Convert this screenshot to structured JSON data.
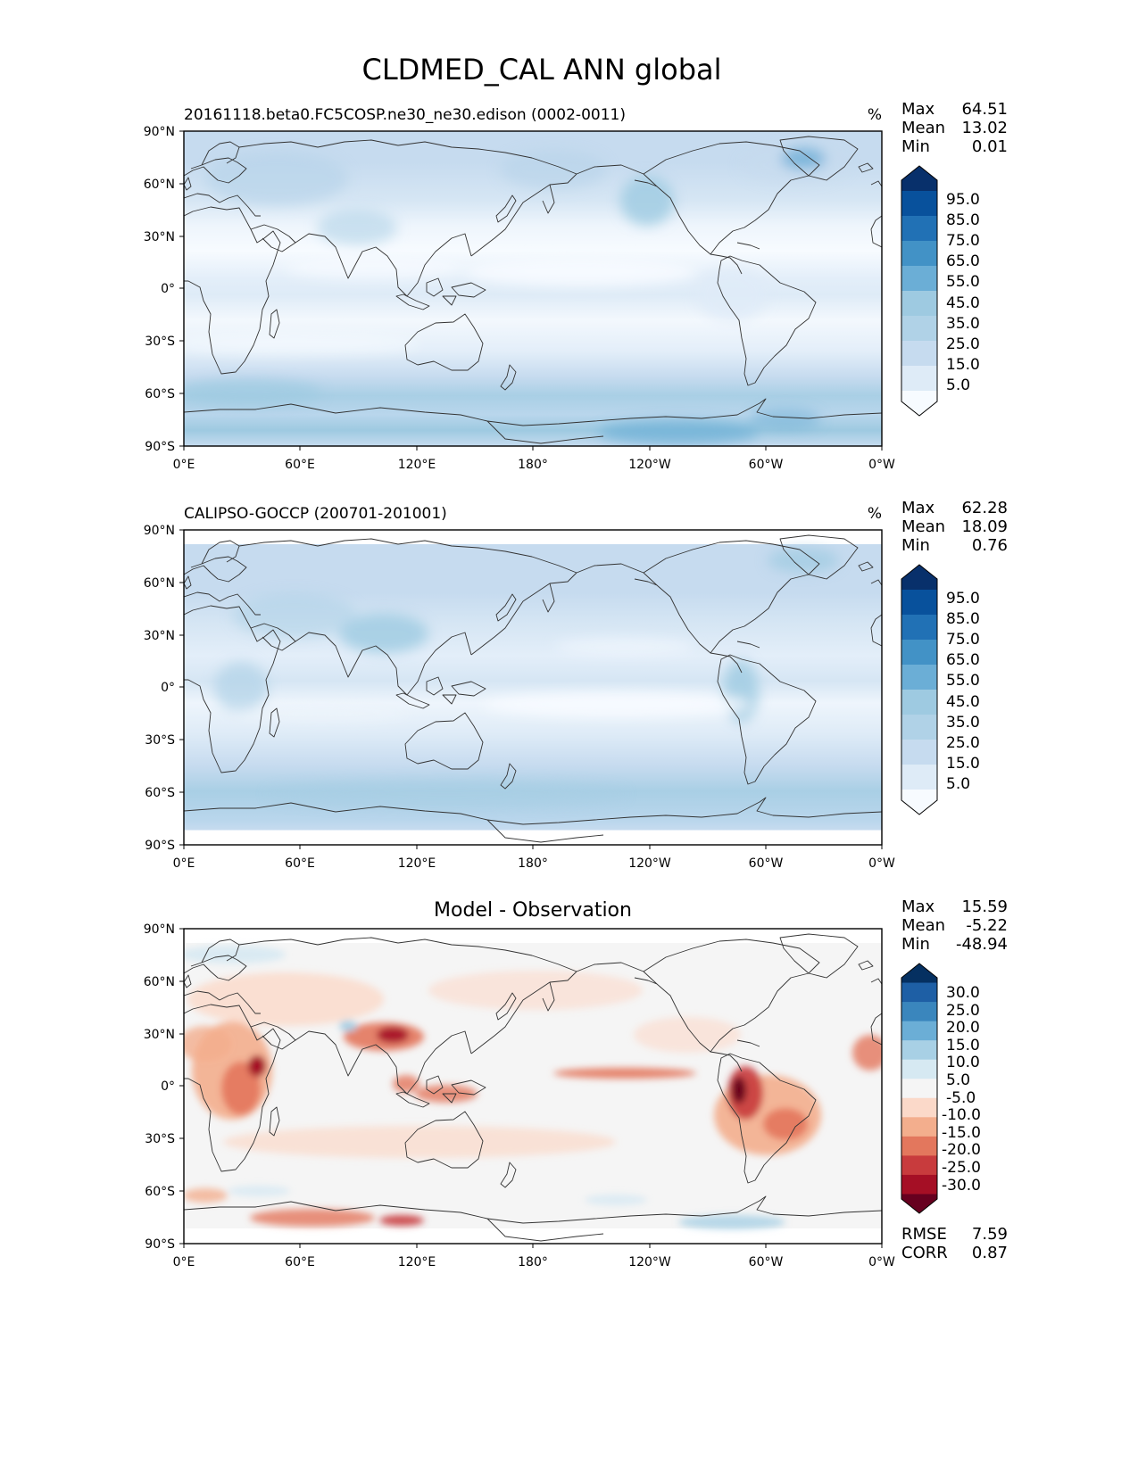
{
  "figure": {
    "title": "CLDMED_CAL ANN global"
  },
  "colors": {
    "seq": [
      "#f7fbff",
      "#deebf7",
      "#c6dbef",
      "#b0d2e7",
      "#9ecae1",
      "#6baed6",
      "#4292c6",
      "#2171b5",
      "#08519c",
      "#08306b"
    ],
    "div": [
      "#67001f",
      "#a50f25",
      "#c83b3d",
      "#e3775d",
      "#f3ae8d",
      "#fbd9c9",
      "#f5f5f5",
      "#d6e9f2",
      "#a8d0e5",
      "#6baed6",
      "#3a86bd",
      "#1e5fa5",
      "#053061"
    ],
    "coast": "#333333"
  },
  "axes_common": {
    "xticks": [
      "0°E",
      "60°E",
      "120°E",
      "180°",
      "120°W",
      "60°W",
      "0°W"
    ],
    "yticks": [
      "90°N",
      "60°N",
      "30°N",
      "0°",
      "30°S",
      "60°S",
      "90°S"
    ]
  },
  "panels": [
    {
      "title_left": "20161118.beta0.FC5COSP.ne30_ne30.edison (0002-0011)",
      "units": "%",
      "stats": [
        {
          "label": "Max",
          "value": "64.51"
        },
        {
          "label": "Mean",
          "value": "13.02"
        },
        {
          "label": "Min",
          "value": "0.01"
        }
      ],
      "colorbar_ticks": [
        "95.0",
        "85.0",
        "75.0",
        "65.0",
        "55.0",
        "45.0",
        "35.0",
        "25.0",
        "15.0",
        "5.0"
      ]
    },
    {
      "title_left": "CALIPSO-GOCCP (200701-201001)",
      "units": "%",
      "stats": [
        {
          "label": "Max",
          "value": "62.28"
        },
        {
          "label": "Mean",
          "value": "18.09"
        },
        {
          "label": "Min",
          "value": "0.76"
        }
      ],
      "colorbar_ticks": [
        "95.0",
        "85.0",
        "75.0",
        "65.0",
        "55.0",
        "45.0",
        "35.0",
        "25.0",
        "15.0",
        "5.0"
      ]
    },
    {
      "title_center": "Model - Observation",
      "stats": [
        {
          "label": "Max",
          "value": "15.59"
        },
        {
          "label": "Mean",
          "value": "-5.22"
        },
        {
          "label": "Min",
          "value": "-48.94"
        }
      ],
      "colorbar_ticks": [
        "30.0",
        "25.0",
        "20.0",
        "15.0",
        "10.0",
        "5.0",
        "-5.0",
        "-10.0",
        "-15.0",
        "-20.0",
        "-25.0",
        "-30.0"
      ],
      "metrics": [
        {
          "label": "RMSE",
          "value": "7.59"
        },
        {
          "label": "CORR",
          "value": "0.87"
        }
      ]
    }
  ],
  "chart_data": [
    {
      "type": "heatmap",
      "title": "20161118.beta0.FC5COSP.ne30_ne30.edison (0002-0011)",
      "units": "%",
      "x_range": [
        0,
        360
      ],
      "y_range": [
        -90,
        90
      ],
      "levels": [
        0,
        5,
        15,
        25,
        35,
        45,
        55,
        65,
        75,
        85,
        95,
        100
      ],
      "zonal_mean_profile": {
        "lat": [
          90,
          75,
          60,
          45,
          30,
          15,
          0,
          -15,
          -30,
          -45,
          -55,
          -65,
          -75,
          -90
        ],
        "value": [
          28,
          26,
          24,
          20,
          10,
          6,
          12,
          8,
          10,
          22,
          30,
          32,
          24,
          20
        ]
      },
      "max": 64.51,
      "mean": 13.02,
      "min": 0.01
    },
    {
      "type": "heatmap",
      "title": "CALIPSO-GOCCP (200701-201001)",
      "units": "%",
      "x_range": [
        0,
        360
      ],
      "y_range": [
        -90,
        90
      ],
      "levels": [
        0,
        5,
        15,
        25,
        35,
        45,
        55,
        65,
        75,
        85,
        95,
        100
      ],
      "zonal_mean_profile": {
        "lat": [
          82,
          70,
          60,
          45,
          30,
          15,
          0,
          -15,
          -30,
          -45,
          -55,
          -65,
          -75,
          -82
        ],
        "value": [
          24,
          24,
          25,
          23,
          20,
          15,
          16,
          13,
          14,
          22,
          28,
          30,
          26,
          22
        ]
      },
      "max": 62.28,
      "mean": 18.09,
      "min": 0.76
    },
    {
      "type": "heatmap",
      "title": "Model - Observation",
      "x_range": [
        0,
        360
      ],
      "y_range": [
        -90,
        90
      ],
      "levels": [
        -35,
        -30,
        -25,
        -20,
        -15,
        -10,
        -5,
        5,
        10,
        15,
        20,
        25,
        30,
        35
      ],
      "max": 15.59,
      "mean": -5.22,
      "min": -48.94,
      "rmse": 7.59,
      "corr": 0.87
    }
  ]
}
